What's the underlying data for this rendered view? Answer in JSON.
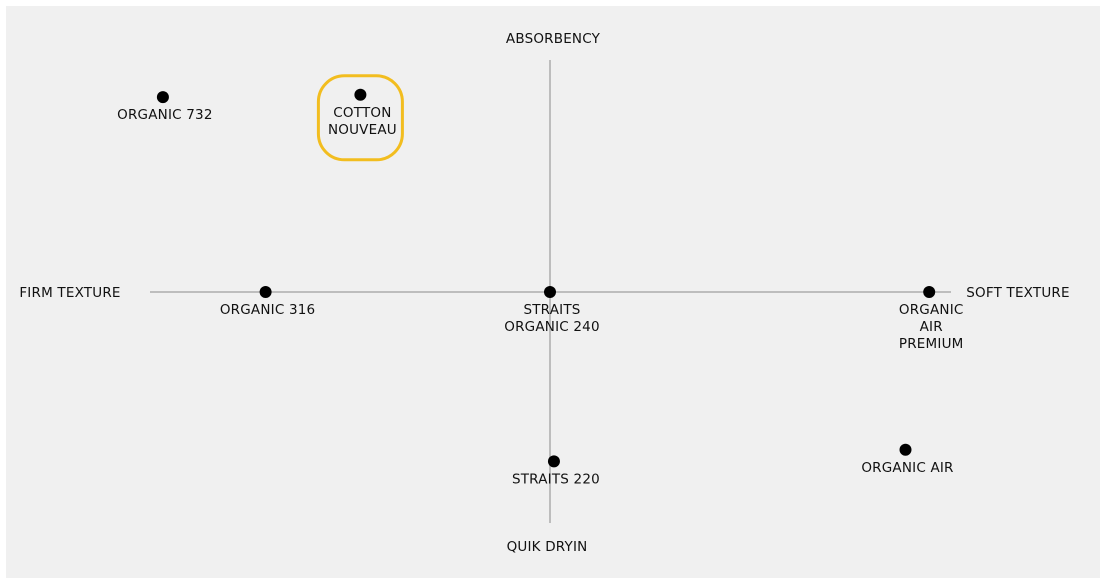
{
  "chart_data": {
    "type": "scatter",
    "title": "",
    "axes": {
      "left_label": "FIRM TEXTURE",
      "right_label": "SOFT TEXTURE",
      "top_label": "ABSORBENCY",
      "bottom_label": "QUIK DRYIN"
    },
    "xlim": [
      -1,
      1
    ],
    "ylim": [
      -1,
      1
    ],
    "grid": false,
    "points": [
      {
        "label": [
          "ORGANIC 732"
        ],
        "x": -0.98,
        "y": 0.84,
        "highlighted": false
      },
      {
        "label": [
          "COTTON",
          "NOUVEAU"
        ],
        "x": -0.48,
        "y": 0.85,
        "highlighted": true
      },
      {
        "label": [
          "ORGANIC 316"
        ],
        "x": -0.72,
        "y": 0.0,
        "highlighted": false
      },
      {
        "label": [
          "STRAITS",
          "ORGANIC 240"
        ],
        "x": 0.0,
        "y": 0.0,
        "highlighted": false
      },
      {
        "label": [
          "ORGANIC",
          "AIR",
          "PREMIUM"
        ],
        "x": 0.96,
        "y": 0.0,
        "highlighted": false
      },
      {
        "label": [
          "STRAITS 220"
        ],
        "x": 0.01,
        "y": -0.73,
        "highlighted": false
      },
      {
        "label": [
          "ORGANIC AIR"
        ],
        "x": 0.9,
        "y": -0.68,
        "highlighted": false
      }
    ],
    "colors": {
      "background": "#f0f0f0",
      "axis": "#bdbdbd",
      "point": "#000000",
      "highlight": "#f2bd1f"
    }
  }
}
